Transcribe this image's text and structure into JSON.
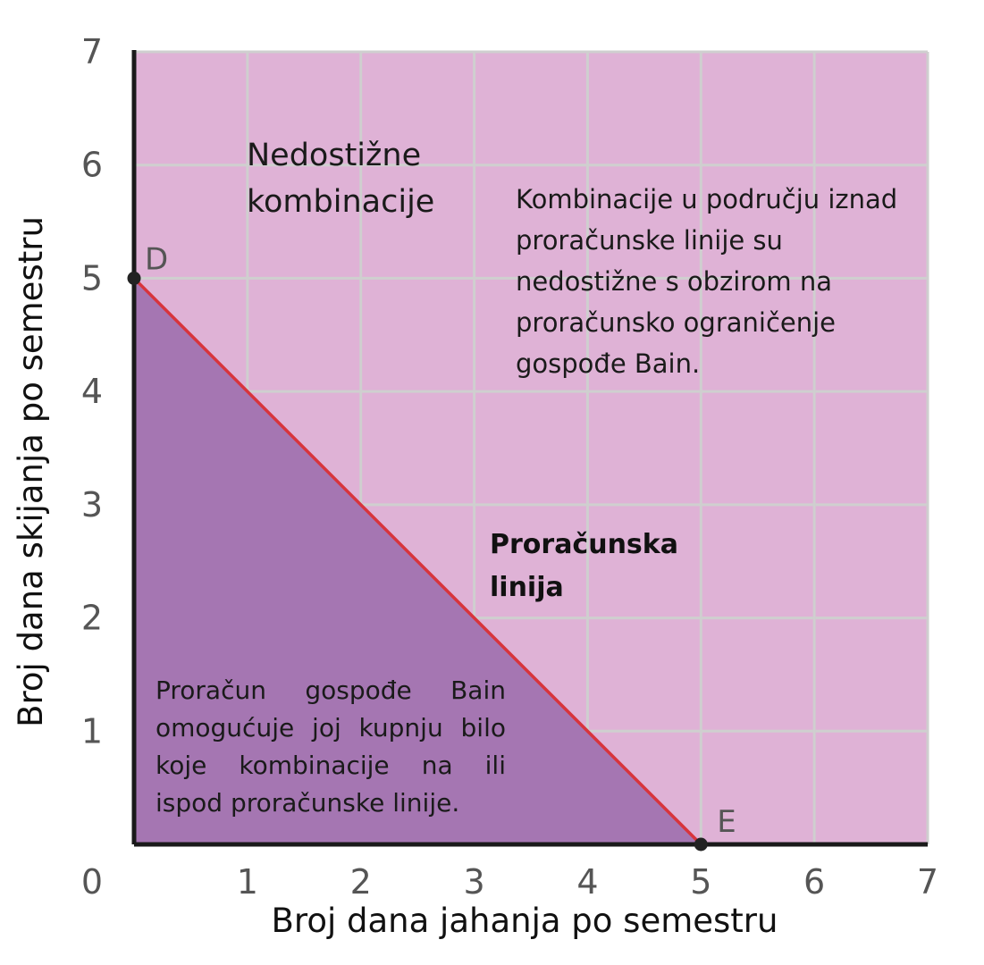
{
  "chart_data": {
    "type": "line",
    "xlabel": "Broj dana jahanja po semestru",
    "ylabel": "Broj dana skijanja po semestru",
    "xlim": [
      0,
      7
    ],
    "ylim": [
      0,
      7
    ],
    "x_ticks": [
      "0",
      "1",
      "2",
      "3",
      "4",
      "5",
      "6",
      "7"
    ],
    "y_ticks": [
      "1",
      "2",
      "3",
      "4",
      "5",
      "6",
      "7"
    ],
    "grid": true,
    "series": [
      {
        "name": "Proračunska linija",
        "x": [
          0,
          5
        ],
        "y": [
          5,
          0
        ],
        "color": "#d8343c"
      }
    ],
    "points": [
      {
        "label": "D",
        "x": 0,
        "y": 5
      },
      {
        "label": "E",
        "x": 5,
        "y": 0
      }
    ],
    "annotations": {
      "unreachable_title": "Nedostižne kombinacije",
      "above_line_note": "Kombinacije u području iznad proračunske linije su nedostižne s obzirom na proračunsko ograničenje gospođe Bain.",
      "line_label": "Proračunska linija",
      "below_line_note": "Proračun gospođe Bain omogućuje joj kupnju bilo koje kombinacije na ili ispod proračunske linije."
    },
    "colors": {
      "background_region": "#dfb2d6",
      "affordable_region": "#a576b2",
      "grid": "#cfcfcf",
      "axis": "#1a1a1a"
    }
  }
}
